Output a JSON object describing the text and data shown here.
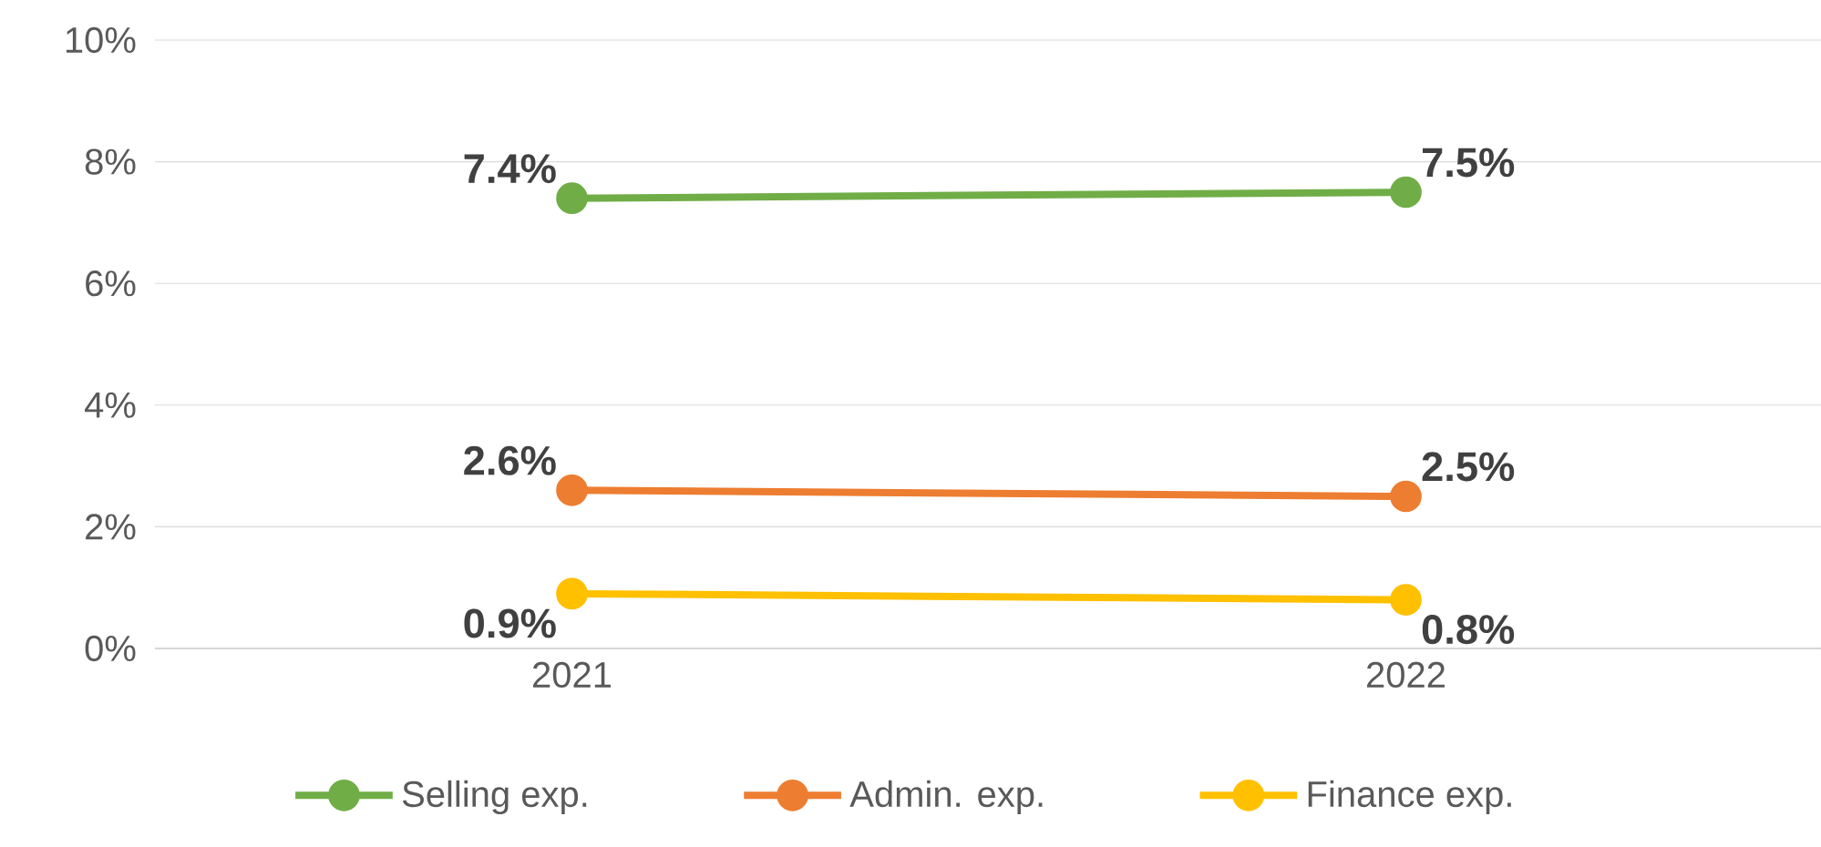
{
  "chart_data": {
    "type": "line",
    "categories": [
      "2021",
      "2022"
    ],
    "series": [
      {
        "name": "Selling exp.",
        "color": "#70ad47",
        "values": [
          7.4,
          7.5
        ],
        "value_labels": [
          "7.4%",
          "7.5%"
        ]
      },
      {
        "name": "Admin. exp.",
        "color": "#ed7d31",
        "values": [
          2.6,
          2.5
        ],
        "value_labels": [
          "2.6%",
          "2.5%"
        ]
      },
      {
        "name": "Finance exp.",
        "color": "#ffc000",
        "values": [
          0.9,
          0.8
        ],
        "value_labels": [
          "0.9%",
          "0.8%"
        ]
      }
    ],
    "ylim": [
      0,
      10
    ],
    "yticks": [
      {
        "value": 0,
        "label": "0%"
      },
      {
        "value": 2,
        "label": "2%"
      },
      {
        "value": 4,
        "label": "4%"
      },
      {
        "value": 6,
        "label": "6%"
      },
      {
        "value": 8,
        "label": "8%"
      },
      {
        "value": 10,
        "label": "10%"
      }
    ],
    "grid": "y",
    "legend": "bottom",
    "marker": "circle",
    "line_style": "solid"
  }
}
